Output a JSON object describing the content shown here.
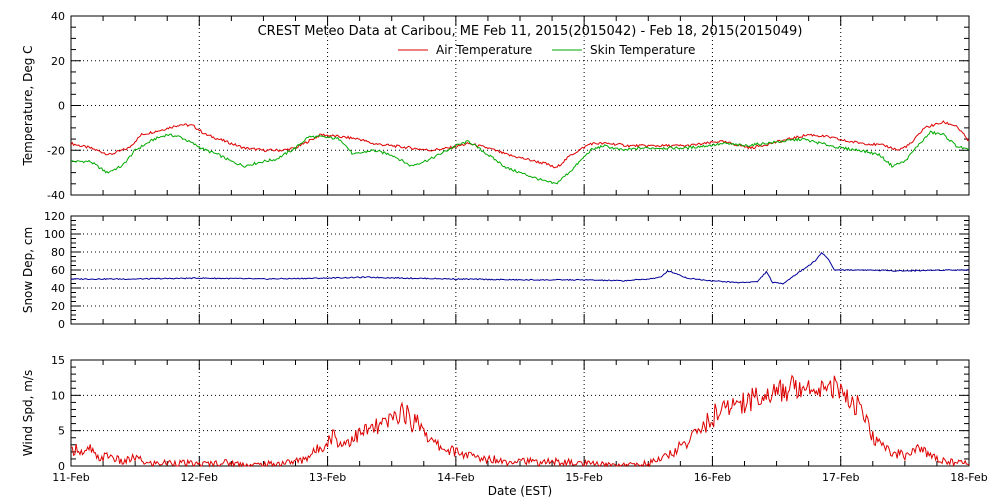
{
  "title": "CREST Meteo Data at Caribou, ME    Feb 11, 2015(2015042) - Feb 18, 2015(2015049)",
  "xlabel": "Date (EST)",
  "x_ticks": [
    "11-Feb",
    "12-Feb",
    "13-Feb",
    "14-Feb",
    "15-Feb",
    "16-Feb",
    "17-Feb",
    "18-Feb"
  ],
  "chart_data": [
    {
      "type": "line",
      "ylabel": "Temperature, Deg C",
      "ylim": [
        -40,
        40
      ],
      "yticks": [
        -40,
        -20,
        0,
        20,
        40
      ],
      "xlim": [
        0,
        7
      ],
      "grid": true,
      "legend": "top-center",
      "series": [
        {
          "name": "Air Temperature",
          "color": "#dd0000",
          "points": [
            [
              0,
              -17
            ],
            [
              0.15,
              -19
            ],
            [
              0.3,
              -22
            ],
            [
              0.45,
              -19
            ],
            [
              0.55,
              -13
            ],
            [
              0.7,
              -11
            ],
            [
              0.85,
              -8.5
            ],
            [
              0.95,
              -9
            ],
            [
              1.05,
              -13
            ],
            [
              1.2,
              -16
            ],
            [
              1.35,
              -19
            ],
            [
              1.5,
              -20
            ],
            [
              1.65,
              -20
            ],
            [
              1.75,
              -19
            ],
            [
              1.85,
              -16
            ],
            [
              1.95,
              -13
            ],
            [
              2.1,
              -14
            ],
            [
              2.25,
              -15
            ],
            [
              2.35,
              -17
            ],
            [
              2.5,
              -18
            ],
            [
              2.65,
              -19
            ],
            [
              2.8,
              -20
            ],
            [
              2.95,
              -19
            ],
            [
              3.1,
              -17
            ],
            [
              3.25,
              -19
            ],
            [
              3.4,
              -22
            ],
            [
              3.55,
              -24
            ],
            [
              3.7,
              -26
            ],
            [
              3.78,
              -28
            ],
            [
              3.9,
              -22
            ],
            [
              4.05,
              -17
            ],
            [
              4.2,
              -17
            ],
            [
              4.35,
              -18
            ],
            [
              4.5,
              -18
            ],
            [
              4.65,
              -18
            ],
            [
              4.8,
              -18
            ],
            [
              4.95,
              -17
            ],
            [
              5.05,
              -16
            ],
            [
              5.15,
              -17
            ],
            [
              5.3,
              -19
            ],
            [
              5.45,
              -17
            ],
            [
              5.6,
              -15
            ],
            [
              5.75,
              -13
            ],
            [
              5.9,
              -14
            ],
            [
              6.05,
              -16
            ],
            [
              6.2,
              -17
            ],
            [
              6.35,
              -18
            ],
            [
              6.45,
              -20
            ],
            [
              6.55,
              -17
            ],
            [
              6.65,
              -10
            ],
            [
              6.8,
              -7.5
            ],
            [
              6.9,
              -9
            ],
            [
              7.0,
              -16
            ]
          ]
        },
        {
          "name": "Skin Temperature",
          "color": "#00aa00",
          "points": [
            [
              0,
              -25
            ],
            [
              0.15,
              -25
            ],
            [
              0.28,
              -30
            ],
            [
              0.4,
              -27
            ],
            [
              0.5,
              -20
            ],
            [
              0.65,
              -15
            ],
            [
              0.75,
              -13
            ],
            [
              0.85,
              -14
            ],
            [
              0.95,
              -17
            ],
            [
              1.05,
              -20
            ],
            [
              1.15,
              -22
            ],
            [
              1.25,
              -25
            ],
            [
              1.35,
              -27
            ],
            [
              1.5,
              -25
            ],
            [
              1.6,
              -24
            ],
            [
              1.75,
              -19
            ],
            [
              1.85,
              -14
            ],
            [
              1.95,
              -14
            ],
            [
              2.1,
              -15
            ],
            [
              2.2,
              -22
            ],
            [
              2.35,
              -20
            ],
            [
              2.5,
              -22
            ],
            [
              2.65,
              -27
            ],
            [
              2.8,
              -24
            ],
            [
              3.0,
              -18
            ],
            [
              3.1,
              -16
            ],
            [
              3.25,
              -22
            ],
            [
              3.4,
              -28
            ],
            [
              3.55,
              -31
            ],
            [
              3.7,
              -34
            ],
            [
              3.78,
              -35
            ],
            [
              3.9,
              -29
            ],
            [
              4.05,
              -20
            ],
            [
              4.15,
              -18
            ],
            [
              4.3,
              -20
            ],
            [
              4.45,
              -19
            ],
            [
              4.6,
              -19
            ],
            [
              4.8,
              -19
            ],
            [
              4.95,
              -18
            ],
            [
              5.1,
              -17
            ],
            [
              5.25,
              -18
            ],
            [
              5.4,
              -17
            ],
            [
              5.55,
              -16
            ],
            [
              5.7,
              -15
            ],
            [
              5.85,
              -17
            ],
            [
              6.0,
              -19
            ],
            [
              6.15,
              -20
            ],
            [
              6.3,
              -22
            ],
            [
              6.4,
              -27
            ],
            [
              6.5,
              -25
            ],
            [
              6.6,
              -18
            ],
            [
              6.7,
              -12
            ],
            [
              6.8,
              -13
            ],
            [
              6.9,
              -18
            ],
            [
              7.0,
              -20
            ]
          ]
        }
      ]
    },
    {
      "type": "line",
      "ylabel": "Snow Dep, cm",
      "ylim": [
        0,
        120
      ],
      "yticks": [
        0,
        20,
        40,
        60,
        80,
        100,
        120
      ],
      "xlim": [
        0,
        7
      ],
      "grid": true,
      "series": [
        {
          "color": "#000099",
          "points": [
            [
              0,
              50
            ],
            [
              0.5,
              50
            ],
            [
              1.0,
              51
            ],
            [
              1.5,
              50
            ],
            [
              2.0,
              51
            ],
            [
              2.3,
              52
            ],
            [
              2.6,
              51
            ],
            [
              3.0,
              50
            ],
            [
              3.5,
              49
            ],
            [
              4.0,
              49
            ],
            [
              4.3,
              48
            ],
            [
              4.5,
              50
            ],
            [
              4.6,
              52
            ],
            [
              4.65,
              59
            ],
            [
              4.72,
              56
            ],
            [
              4.8,
              51
            ],
            [
              5.0,
              48
            ],
            [
              5.2,
              46
            ],
            [
              5.35,
              47
            ],
            [
              5.42,
              58
            ],
            [
              5.47,
              46
            ],
            [
              5.55,
              45
            ],
            [
              5.6,
              50
            ],
            [
              5.7,
              60
            ],
            [
              5.8,
              70
            ],
            [
              5.85,
              79
            ],
            [
              5.9,
              73
            ],
            [
              5.95,
              60
            ],
            [
              6.2,
              60
            ],
            [
              6.5,
              59
            ],
            [
              6.8,
              60
            ],
            [
              7.0,
              60
            ]
          ]
        }
      ]
    },
    {
      "type": "line",
      "ylabel": "Wind Spd, m/s",
      "ylim": [
        0,
        15
      ],
      "yticks": [
        0,
        5,
        10,
        15
      ],
      "xlim": [
        0,
        7
      ],
      "grid": true,
      "series": [
        {
          "color": "#dd0000",
          "points": [
            [
              0,
              2
            ],
            [
              0.05,
              2.7
            ],
            [
              0.1,
              1.5
            ],
            [
              0.15,
              2.5
            ],
            [
              0.2,
              1
            ],
            [
              0.3,
              1.5
            ],
            [
              0.4,
              0.5
            ],
            [
              0.5,
              1.2
            ],
            [
              0.6,
              0.3
            ],
            [
              0.8,
              0.5
            ],
            [
              1.0,
              0.2
            ],
            [
              1.2,
              0.5
            ],
            [
              1.4,
              0.1
            ],
            [
              1.6,
              0.3
            ],
            [
              1.8,
              0.8
            ],
            [
              1.9,
              2
            ],
            [
              2.0,
              3.5
            ],
            [
              2.05,
              4.5
            ],
            [
              2.1,
              3
            ],
            [
              2.2,
              4
            ],
            [
              2.3,
              5
            ],
            [
              2.4,
              5.5
            ],
            [
              2.5,
              6.5
            ],
            [
              2.55,
              7.5
            ],
            [
              2.6,
              7.8
            ],
            [
              2.65,
              6
            ],
            [
              2.7,
              6.5
            ],
            [
              2.75,
              5.5
            ],
            [
              2.8,
              3.5
            ],
            [
              2.9,
              2.5
            ],
            [
              3.0,
              2
            ],
            [
              3.1,
              1.5
            ],
            [
              3.2,
              1
            ],
            [
              3.3,
              1
            ],
            [
              3.4,
              0.6
            ],
            [
              3.5,
              1
            ],
            [
              3.6,
              0.5
            ],
            [
              3.8,
              0.6
            ],
            [
              4.0,
              0.3
            ],
            [
              4.2,
              0.1
            ],
            [
              4.4,
              0.2
            ],
            [
              4.5,
              0.4
            ],
            [
              4.6,
              1
            ],
            [
              4.7,
              2
            ],
            [
              4.8,
              3.5
            ],
            [
              4.9,
              5
            ],
            [
              5.0,
              7
            ],
            [
              5.1,
              8
            ],
            [
              5.2,
              9
            ],
            [
              5.3,
              9.5
            ],
            [
              5.4,
              10
            ],
            [
              5.5,
              10.5
            ],
            [
              5.6,
              11
            ],
            [
              5.7,
              11.5
            ],
            [
              5.8,
              11
            ],
            [
              5.9,
              11.8
            ],
            [
              6.0,
              10.5
            ],
            [
              6.05,
              9.5
            ],
            [
              6.1,
              9
            ],
            [
              6.15,
              8
            ],
            [
              6.2,
              6
            ],
            [
              6.25,
              4
            ],
            [
              6.3,
              3
            ],
            [
              6.4,
              2
            ],
            [
              6.5,
              1.5
            ],
            [
              6.6,
              2.5
            ],
            [
              6.7,
              1.5
            ],
            [
              6.8,
              0.8
            ],
            [
              6.9,
              0.5
            ],
            [
              7.0,
              0.4
            ]
          ]
        }
      ]
    }
  ]
}
